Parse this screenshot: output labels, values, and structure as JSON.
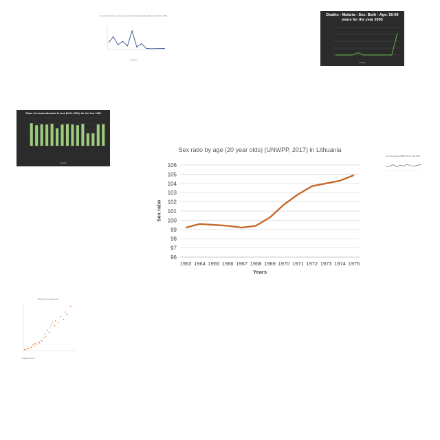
{
  "colors": {
    "main_line": "#c46a2b",
    "dark_bg": "#2b2b2b",
    "green_line": "#6abf4b",
    "green_bar": "#9ccc7c",
    "blue_line": "#2f4f8f",
    "grid": "#d9d9d9",
    "scatter": "#e8792a",
    "axis_text": "#404040"
  },
  "chart_data": [
    {
      "type": "line",
      "title": "Sex ratio by age (20 year olds) (UNWPP, 2017) in Lithuania",
      "xlabel": "Years",
      "ylabel": "Sex ratio",
      "x": [
        1963,
        1964,
        1965,
        1966,
        1967,
        1968,
        1969,
        1970,
        1971,
        1972,
        1973,
        1974,
        1975
      ],
      "series": [
        {
          "name": "",
          "values": [
            99.2,
            99.6,
            99.5,
            99.4,
            99.2,
            99.4,
            100.3,
            101.7,
            102.8,
            103.7,
            104.0,
            104.3,
            104.9
          ]
        }
      ],
      "ylim": [
        96,
        106
      ],
      "yticks": [
        "96",
        "97",
        "98",
        "99",
        "100",
        "101",
        "102",
        "103",
        "104",
        "105",
        "106"
      ],
      "grid": true
    },
    {
      "type": "line",
      "title": "Deaths - Malaria - Sex: Both - Age: 50-69 years for the year 2005",
      "xlabel": "country",
      "series": [
        {
          "name": "",
          "values": [
            0,
            0,
            0,
            0,
            5,
            0,
            0,
            0,
            0,
            0,
            0,
            48
          ]
        }
      ],
      "ylim": [
        0,
        60
      ],
      "grid": true
    },
    {
      "type": "line",
      "title": "Air quality Emissions on the selected environmental health landings extended to 1996",
      "xlabel": "countries",
      "series": [
        {
          "name": "",
          "values": [
            30,
            55,
            20,
            35,
            15,
            80,
            10,
            25,
            5,
            3,
            4,
            4,
            5
          ]
        }
      ],
      "ylim": [
        0,
        100
      ],
      "grid": false
    },
    {
      "type": "bar",
      "title": "Share of cereals allocated to food (FAO, 2000): for the Year 1998",
      "xlabel": "country",
      "values": [
        90,
        82,
        86,
        85,
        88,
        70,
        85,
        87,
        85,
        82,
        88,
        50,
        50,
        85,
        86
      ],
      "ylim": [
        0,
        110
      ],
      "grid": true
    },
    {
      "type": "line",
      "title": "Sex ratio by age (UNWPP, 2017) in Year 1998",
      "xlabel": "",
      "series": [
        {
          "name": "",
          "values": [
            40,
            45,
            60,
            40,
            55,
            45,
            65,
            50,
            45,
            55,
            60
          ]
        }
      ],
      "ylim": [
        0,
        100
      ],
      "grid": false
    },
    {
      "type": "scatter",
      "title": "Biorell, the scatter plot",
      "xlabel": "scattered points",
      "points": [
        [
          0.02,
          0.02
        ],
        [
          0.05,
          0.03
        ],
        [
          0.08,
          0.05
        ],
        [
          0.1,
          0.04
        ],
        [
          0.12,
          0.08
        ],
        [
          0.15,
          0.07
        ],
        [
          0.18,
          0.12
        ],
        [
          0.2,
          0.1
        ],
        [
          0.22,
          0.15
        ],
        [
          0.25,
          0.13
        ],
        [
          0.28,
          0.18
        ],
        [
          0.3,
          0.16
        ],
        [
          0.33,
          0.22
        ],
        [
          0.35,
          0.2
        ],
        [
          0.38,
          0.27
        ],
        [
          0.4,
          0.35
        ],
        [
          0.42,
          0.3
        ],
        [
          0.45,
          0.42
        ],
        [
          0.48,
          0.38
        ],
        [
          0.5,
          0.5
        ],
        [
          0.52,
          0.55
        ],
        [
          0.55,
          0.6
        ],
        [
          0.58,
          0.52
        ],
        [
          0.6,
          0.62
        ],
        [
          0.65,
          0.58
        ],
        [
          0.7,
          0.7
        ],
        [
          0.75,
          0.65
        ],
        [
          0.78,
          0.8
        ],
        [
          0.82,
          0.75
        ],
        [
          0.88,
          0.92
        ]
      ],
      "xlim": [
        0,
        1
      ],
      "ylim": [
        0,
        1
      ],
      "grid": false
    }
  ]
}
